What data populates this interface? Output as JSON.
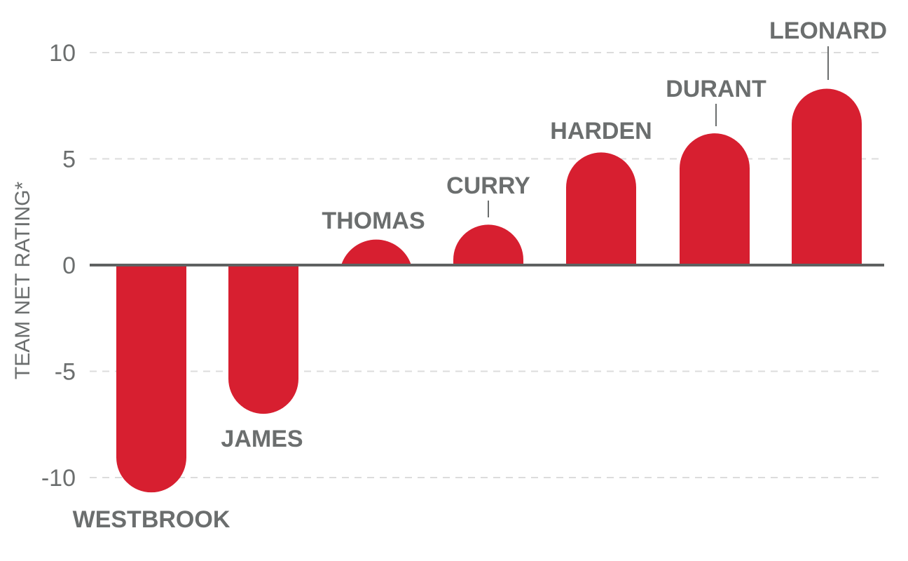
{
  "chart_data": {
    "type": "bar",
    "title": "",
    "xlabel": "",
    "ylabel": "TEAM NET RATING*",
    "ylim": [
      -10,
      10
    ],
    "yticks": [
      10,
      5,
      0,
      -5,
      -10
    ],
    "grid": "dashed horizontal",
    "bar_color": "#d71f30",
    "categories": [
      "WESTBROOK",
      "JAMES",
      "THOMAS",
      "CURRY",
      "HARDEN",
      "DURANT",
      "LEONARD"
    ],
    "values": [
      -10.7,
      -7.0,
      1.2,
      1.9,
      5.3,
      6.2,
      8.3
    ]
  },
  "axis": {
    "ylabel": "TEAM NET RATING*",
    "ticks": [
      "10",
      "5",
      "0",
      "-5",
      "-10"
    ]
  }
}
